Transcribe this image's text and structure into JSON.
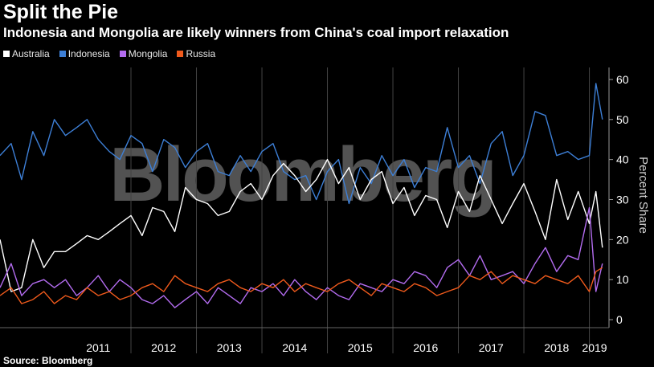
{
  "title": "Split the Pie",
  "subtitle": "Indonesia and Mongolia are likely winners from China's coal import relaxation",
  "source": "Source: Bloomberg",
  "watermark": "Bloomberg",
  "chart_data": {
    "type": "line",
    "ylabel": "Percent Share",
    "ylim": [
      -2,
      63
    ],
    "y_ticks": [
      0,
      10,
      20,
      30,
      40,
      50,
      60
    ],
    "x_ticks": [
      "2011",
      "2012",
      "2013",
      "2014",
      "2015",
      "2016",
      "2017",
      "2018",
      "2019"
    ],
    "xlim": [
      2010.0,
      2019.3
    ],
    "legend_position": "top-left",
    "grid": "vertical-year-dividers",
    "series": [
      {
        "name": "Indonesia",
        "color": "#3d7fd6",
        "x": [
          2010.0,
          2010.17,
          2010.33,
          2010.5,
          2010.67,
          2010.83,
          2011.0,
          2011.17,
          2011.33,
          2011.5,
          2011.67,
          2011.83,
          2012.0,
          2012.17,
          2012.33,
          2012.5,
          2012.67,
          2012.83,
          2013.0,
          2013.17,
          2013.33,
          2013.5,
          2013.67,
          2013.83,
          2014.0,
          2014.17,
          2014.33,
          2014.5,
          2014.67,
          2014.83,
          2015.0,
          2015.17,
          2015.33,
          2015.5,
          2015.67,
          2015.83,
          2016.0,
          2016.17,
          2016.33,
          2016.5,
          2016.67,
          2016.83,
          2017.0,
          2017.17,
          2017.33,
          2017.5,
          2017.67,
          2017.83,
          2018.0,
          2018.17,
          2018.33,
          2018.5,
          2018.67,
          2018.83,
          2019.0,
          2019.1,
          2019.2
        ],
        "values": [
          41,
          44,
          35,
          47,
          41,
          50,
          46,
          48,
          50,
          45,
          42,
          40,
          46,
          44,
          37,
          45,
          43,
          38,
          42,
          44,
          37,
          36,
          41,
          37,
          42,
          44,
          37,
          35,
          36,
          30,
          37,
          40,
          29,
          38,
          34,
          41,
          36,
          40,
          33,
          38,
          37,
          48,
          38,
          41,
          34,
          44,
          47,
          36,
          41,
          52,
          51,
          41,
          42,
          40,
          41,
          59,
          50
        ]
      },
      {
        "name": "Australia",
        "color": "#ffffff",
        "x": [
          2010.0,
          2010.17,
          2010.33,
          2010.5,
          2010.67,
          2010.83,
          2011.0,
          2011.17,
          2011.33,
          2011.5,
          2011.67,
          2011.83,
          2012.0,
          2012.17,
          2012.33,
          2012.5,
          2012.67,
          2012.83,
          2013.0,
          2013.17,
          2013.33,
          2013.5,
          2013.67,
          2013.83,
          2014.0,
          2014.17,
          2014.33,
          2014.5,
          2014.67,
          2014.83,
          2015.0,
          2015.17,
          2015.33,
          2015.5,
          2015.67,
          2015.83,
          2016.0,
          2016.17,
          2016.33,
          2016.5,
          2016.67,
          2016.83,
          2017.0,
          2017.17,
          2017.33,
          2017.5,
          2017.67,
          2017.83,
          2018.0,
          2018.17,
          2018.33,
          2018.5,
          2018.67,
          2018.83,
          2019.0,
          2019.1,
          2019.2
        ],
        "values": [
          20,
          7,
          8,
          20,
          13,
          17,
          17,
          19,
          21,
          20,
          22,
          24,
          26,
          21,
          28,
          27,
          22,
          33,
          30,
          29,
          26,
          27,
          32,
          34,
          30,
          36,
          39,
          36,
          32,
          35,
          40,
          34,
          38,
          30,
          35,
          37,
          29,
          33,
          26,
          31,
          30,
          23,
          32,
          27,
          36,
          30,
          24,
          29,
          34,
          27,
          20,
          35,
          25,
          32,
          24,
          32,
          18
        ]
      },
      {
        "name": "Mongolia",
        "color": "#b36cf0",
        "x": [
          2010.0,
          2010.17,
          2010.33,
          2010.5,
          2010.67,
          2010.83,
          2011.0,
          2011.17,
          2011.33,
          2011.5,
          2011.67,
          2011.83,
          2012.0,
          2012.17,
          2012.33,
          2012.5,
          2012.67,
          2012.83,
          2013.0,
          2013.17,
          2013.33,
          2013.5,
          2013.67,
          2013.83,
          2014.0,
          2014.17,
          2014.33,
          2014.5,
          2014.67,
          2014.83,
          2015.0,
          2015.17,
          2015.33,
          2015.5,
          2015.67,
          2015.83,
          2016.0,
          2016.17,
          2016.33,
          2016.5,
          2016.67,
          2016.83,
          2017.0,
          2017.17,
          2017.33,
          2017.5,
          2017.67,
          2017.83,
          2018.0,
          2018.17,
          2018.33,
          2018.5,
          2018.67,
          2018.83,
          2019.0,
          2019.1,
          2019.2
        ],
        "values": [
          8,
          14,
          6,
          9,
          10,
          8,
          10,
          6,
          8,
          11,
          7,
          10,
          8,
          5,
          4,
          6,
          3,
          5,
          7,
          4,
          8,
          6,
          4,
          8,
          7,
          9,
          6,
          10,
          7,
          5,
          8,
          6,
          5,
          9,
          8,
          7,
          10,
          9,
          12,
          11,
          8,
          13,
          15,
          11,
          16,
          10,
          11,
          12,
          9,
          14,
          18,
          12,
          16,
          15,
          28,
          7,
          14
        ]
      },
      {
        "name": "Russia",
        "color": "#ef5a1c",
        "x": [
          2010.0,
          2010.17,
          2010.33,
          2010.5,
          2010.67,
          2010.83,
          2011.0,
          2011.17,
          2011.33,
          2011.5,
          2011.67,
          2011.83,
          2012.0,
          2012.17,
          2012.33,
          2012.5,
          2012.67,
          2012.83,
          2013.0,
          2013.17,
          2013.33,
          2013.5,
          2013.67,
          2013.83,
          2014.0,
          2014.17,
          2014.33,
          2014.5,
          2014.67,
          2014.83,
          2015.0,
          2015.17,
          2015.33,
          2015.5,
          2015.67,
          2015.83,
          2016.0,
          2016.17,
          2016.33,
          2016.5,
          2016.67,
          2016.83,
          2017.0,
          2017.17,
          2017.33,
          2017.5,
          2017.67,
          2017.83,
          2018.0,
          2018.17,
          2018.33,
          2018.5,
          2018.67,
          2018.83,
          2019.0,
          2019.1,
          2019.2
        ],
        "values": [
          6,
          8,
          4,
          5,
          7,
          4,
          6,
          5,
          8,
          6,
          7,
          5,
          6,
          8,
          9,
          7,
          11,
          9,
          8,
          7,
          9,
          10,
          8,
          7,
          9,
          8,
          10,
          7,
          9,
          8,
          7,
          9,
          10,
          8,
          6,
          9,
          8,
          7,
          9,
          8,
          6,
          7,
          8,
          11,
          10,
          12,
          9,
          11,
          10,
          9,
          11,
          10,
          9,
          11,
          7,
          12,
          13
        ]
      }
    ]
  }
}
